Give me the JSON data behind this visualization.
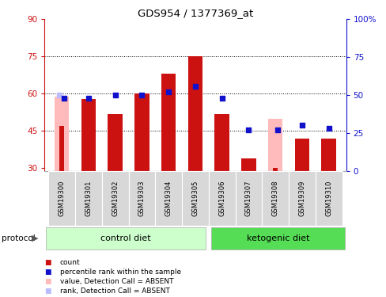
{
  "title": "GDS954 / 1377369_at",
  "samples": [
    "GSM19300",
    "GSM19301",
    "GSM19302",
    "GSM19303",
    "GSM19304",
    "GSM19305",
    "GSM19306",
    "GSM19307",
    "GSM19308",
    "GSM19309",
    "GSM19310"
  ],
  "red_values": [
    47,
    58,
    52,
    60,
    68,
    75,
    52,
    34,
    30,
    42,
    42
  ],
  "blue_values": [
    48,
    48,
    50,
    50,
    52,
    56,
    48,
    27,
    27,
    30,
    28
  ],
  "pink_values": [
    59,
    0,
    0,
    0,
    0,
    0,
    0,
    0,
    50,
    0,
    0
  ],
  "light_blue_values": [
    50,
    0,
    0,
    0,
    0,
    0,
    0,
    0,
    0,
    0,
    0
  ],
  "absent_mask": [
    true,
    false,
    false,
    false,
    false,
    false,
    false,
    false,
    true,
    false,
    false
  ],
  "control_label": "control diet",
  "ketogenic_label": "ketogenic diet",
  "protocol_label": "protocol",
  "ylim_left": [
    29,
    90
  ],
  "ylim_right": [
    0,
    100
  ],
  "yticks_left": [
    30,
    45,
    60,
    75,
    90
  ],
  "yticks_right": [
    0,
    25,
    50,
    75,
    100
  ],
  "ytick_labels_left": [
    "30",
    "45",
    "60",
    "75",
    "90"
  ],
  "ytick_labels_right": [
    "0",
    "25",
    "50",
    "75",
    "100%"
  ],
  "bar_width": 0.55,
  "red_color": "#cc1111",
  "blue_color": "#1111cc",
  "pink_color": "#ffbbbb",
  "light_blue_color": "#bbbbff",
  "control_bg": "#ccffcc",
  "ketogenic_bg": "#55dd55",
  "bar_bottom": 29
}
